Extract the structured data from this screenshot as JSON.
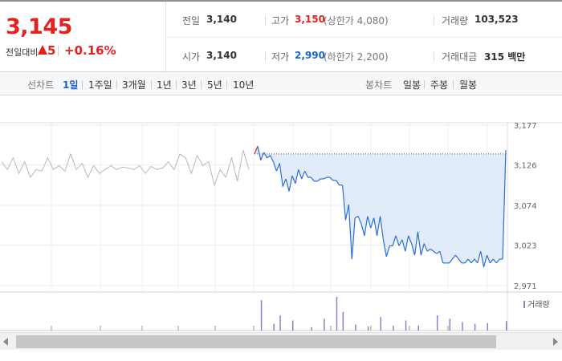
{
  "quote": {
    "price": "3,145",
    "change_label": "전일대비",
    "change_direction_icon": "up-triangle-icon",
    "change_value": "5",
    "change_pct": "+0.16%"
  },
  "stats": {
    "prev_close_label": "전일",
    "prev_close": "3,140",
    "open_label": "시가",
    "open": "3,140",
    "high_label": "고가",
    "high": "3,150",
    "upper_limit": "(상한가 4,080)",
    "low_label": "저가",
    "low": "2,990",
    "lower_limit": "(하한가 2,200)",
    "volume_label": "거래량",
    "volume": "103,523",
    "amount_label": "거래대금",
    "amount": "315 백만"
  },
  "toolbar": {
    "line_label": "선차트",
    "periods": [
      "1일",
      "1주일",
      "3개월",
      "1년",
      "3년",
      "5년",
      "10년"
    ],
    "active_period": "1일",
    "candle_label": "봉차트",
    "candles": [
      "일봉",
      "주봉",
      "월봉"
    ]
  },
  "colors": {
    "up": "#e5211f",
    "down": "#1a64d1",
    "price_line": "#2a6fd6",
    "area_fill": "#e2ebf8",
    "prev_line": "#b9b9b9",
    "volume_bar": "#8a7fc9"
  },
  "chart_data": {
    "type": "line",
    "title": "",
    "y_ticks": [
      "3,177",
      "3,126",
      "3,074",
      "3,023",
      "2,971"
    ],
    "ylim": [
      2971,
      3177
    ],
    "reference_price": 3140,
    "volume_legend": "거래량",
    "previous_day_series": [
      3130,
      3120,
      3135,
      3115,
      3130,
      3110,
      3120,
      3118,
      3135,
      3120,
      3125,
      3118,
      3140,
      3120,
      3128,
      3110,
      3125,
      3115,
      3120,
      3125,
      3120,
      3123,
      3122,
      3120,
      3125,
      3115,
      3124,
      3120,
      3122,
      3130,
      3120,
      3140,
      3135,
      3115,
      3138,
      3125,
      3130,
      3100,
      3120,
      3110,
      3135,
      3105,
      3145,
      3120
    ],
    "series": [
      {
        "values": [
          3140,
          3150,
          3132,
          3142,
          3135,
          3138,
          3130,
          3118,
          3128,
          3098,
          3108,
          3092,
          3112,
          3102,
          3120,
          3108,
          3118,
          3110,
          3110,
          3105,
          3105,
          3108,
          3108,
          3110,
          3110,
          3106,
          3106,
          3100,
          3100,
          3055,
          3075,
          3005,
          3058,
          3060,
          3050,
          3035,
          3060,
          3045,
          3058,
          3035,
          3060,
          3030,
          3008,
          3022,
          3022,
          3035,
          3022,
          3030,
          3015,
          3035,
          3025,
          3010,
          3040,
          3010,
          3025,
          3015,
          3018,
          3015,
          3012,
          3015,
          3000,
          3000,
          3000,
          3005,
          3010,
          3005,
          3000,
          3000,
          3005,
          3000,
          3005,
          3000,
          3015,
          2995,
          3010,
          3000,
          3005,
          3000,
          3005,
          3005,
          3145
        ]
      }
    ],
    "volume": [
      0,
      90,
      0,
      20,
      45,
      0,
      30,
      0,
      0,
      10,
      0,
      35,
      0,
      100,
      55,
      0,
      18,
      0,
      12,
      0,
      40,
      0,
      14,
      0,
      30,
      0,
      15,
      0,
      0,
      45,
      0,
      35,
      0,
      25,
      0,
      20,
      0,
      22,
      0,
      0,
      28
    ]
  }
}
